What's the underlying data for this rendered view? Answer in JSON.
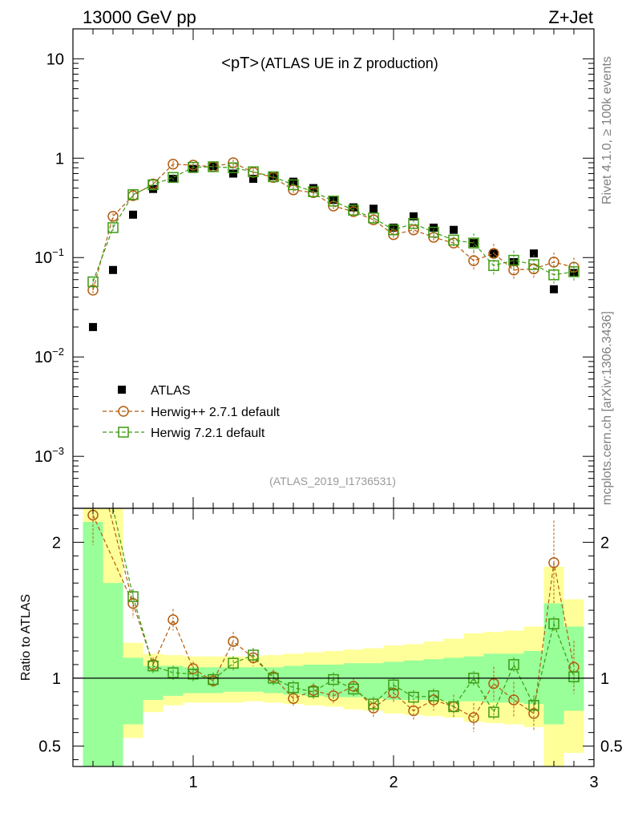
{
  "header": {
    "left": "13000 GeV pp",
    "right": "Z+Jet"
  },
  "side_text": {
    "top": "Rivet 4.1.0, ≥ 100k events",
    "bottom": "mcplots.cern.ch [arXiv:1306.3436]"
  },
  "chart_data": [
    {
      "type": "scatter",
      "yscale": "log",
      "title_main": "<pT>",
      "title_sub": " (ATLAS UE in Z production)",
      "watermark": "(ATLAS_2019_I1736531)",
      "xlim": [
        0.4,
        3.0
      ],
      "ylim": [
        0.0003,
        20
      ],
      "y_ticks": [
        {
          "v": 10,
          "base": "10",
          "exp": ""
        },
        {
          "v": 1,
          "base": "1",
          "exp": ""
        },
        {
          "v": 0.1,
          "base": "10",
          "exp": "−1"
        },
        {
          "v": 0.01,
          "base": "10",
          "exp": "−2"
        },
        {
          "v": 0.001,
          "base": "10",
          "exp": "−3"
        }
      ],
      "legend": {
        "atlas": "ATLAS",
        "herwigpp": "Herwig++ 2.7.1 default",
        "herwig7": "Herwig 7.2.1 default"
      },
      "series": [
        {
          "name": "ATLAS",
          "color": "#000000",
          "x": [
            0.5,
            0.6,
            0.7,
            0.8,
            0.9,
            1.0,
            1.1,
            1.2,
            1.3,
            1.4,
            1.5,
            1.6,
            1.7,
            1.8,
            1.9,
            2.0,
            2.1,
            2.2,
            2.3,
            2.4,
            2.5,
            2.6,
            2.7,
            2.8,
            2.9
          ],
          "y": [
            0.02,
            0.075,
            0.27,
            0.49,
            0.62,
            0.78,
            0.83,
            0.7,
            0.62,
            0.66,
            0.58,
            0.5,
            0.38,
            0.32,
            0.31,
            0.2,
            0.26,
            0.2,
            0.19,
            0.14,
            0.11,
            0.09,
            0.11,
            0.048,
            0.07
          ]
        },
        {
          "name": "Herwig++ 2.7.1 default",
          "color": "#b35c0f",
          "x": [
            0.5,
            0.6,
            0.7,
            0.8,
            0.9,
            1.0,
            1.1,
            1.2,
            1.3,
            1.4,
            1.5,
            1.6,
            1.7,
            1.8,
            1.9,
            2.0,
            2.1,
            2.2,
            2.3,
            2.4,
            2.5,
            2.6,
            2.7,
            2.8,
            2.9
          ],
          "y": [
            0.047,
            0.26,
            0.42,
            0.55,
            0.87,
            0.85,
            0.82,
            0.9,
            0.72,
            0.64,
            0.48,
            0.45,
            0.33,
            0.29,
            0.24,
            0.17,
            0.19,
            0.16,
            0.14,
            0.093,
            0.11,
            0.075,
            0.077,
            0.09,
            0.08
          ]
        },
        {
          "name": "Herwig 7.2.1 default",
          "color": "#3c9a12",
          "x": [
            0.5,
            0.6,
            0.7,
            0.8,
            0.9,
            1.0,
            1.1,
            1.2,
            1.3,
            1.4,
            1.5,
            1.6,
            1.7,
            1.8,
            1.9,
            2.0,
            2.1,
            2.2,
            2.3,
            2.4,
            2.5,
            2.6,
            2.7,
            2.8,
            2.9
          ],
          "y": [
            0.057,
            0.2,
            0.43,
            0.54,
            0.64,
            0.81,
            0.82,
            0.8,
            0.73,
            0.65,
            0.54,
            0.46,
            0.37,
            0.3,
            0.25,
            0.19,
            0.22,
            0.18,
            0.15,
            0.14,
            0.083,
            0.094,
            0.085,
            0.067,
            0.072
          ]
        }
      ]
    },
    {
      "type": "scatter",
      "ylabel": "Ratio to ATLAS",
      "xlim": [
        0.4,
        3.0
      ],
      "ylim": [
        0.35,
        2.25
      ],
      "x_ticks": [
        1,
        2,
        3
      ],
      "y_ticks": [
        0.5,
        1,
        2
      ],
      "reference_line": 1,
      "bands": {
        "x_edges": [
          0.45,
          0.55,
          0.65,
          0.75,
          0.85,
          0.95,
          1.05,
          1.15,
          1.25,
          1.35,
          1.45,
          1.55,
          1.65,
          1.75,
          1.85,
          1.95,
          2.05,
          2.15,
          2.25,
          2.35,
          2.45,
          2.55,
          2.65,
          2.75,
          2.85,
          2.95
        ],
        "stat_lo": [
          0.35,
          0.35,
          0.66,
          0.84,
          0.87,
          0.89,
          0.89,
          0.9,
          0.9,
          0.89,
          0.88,
          0.87,
          0.86,
          0.86,
          0.85,
          0.84,
          0.84,
          0.84,
          0.83,
          0.83,
          0.82,
          0.82,
          0.81,
          0.66,
          0.76
        ],
        "stat_hi": [
          2.15,
          1.7,
          1.15,
          1.09,
          1.09,
          1.08,
          1.08,
          1.08,
          1.08,
          1.08,
          1.09,
          1.1,
          1.1,
          1.11,
          1.11,
          1.12,
          1.13,
          1.14,
          1.15,
          1.16,
          1.18,
          1.18,
          1.2,
          1.55,
          1.38
        ],
        "syst_lo": [
          0.35,
          0.35,
          0.56,
          0.75,
          0.8,
          0.82,
          0.82,
          0.82,
          0.83,
          0.82,
          0.81,
          0.8,
          0.79,
          0.77,
          0.76,
          0.74,
          0.73,
          0.72,
          0.71,
          0.68,
          0.67,
          0.66,
          0.64,
          0.35,
          0.45
        ],
        "syst_hi": [
          2.25,
          2.25,
          1.26,
          1.18,
          1.17,
          1.16,
          1.16,
          1.16,
          1.16,
          1.17,
          1.18,
          1.19,
          1.2,
          1.21,
          1.22,
          1.24,
          1.25,
          1.27,
          1.29,
          1.33,
          1.34,
          1.35,
          1.38,
          1.82,
          1.58
        ],
        "stat_color": "#99ff99",
        "syst_color": "#ffff99"
      },
      "series": [
        {
          "name": "Herwig++ 2.7.1 default",
          "color": "#b35c0f",
          "x": [
            0.5,
            0.7,
            0.8,
            0.9,
            1.0,
            1.1,
            1.2,
            1.3,
            1.4,
            1.5,
            1.6,
            1.7,
            1.8,
            1.9,
            2.0,
            2.1,
            2.2,
            2.3,
            2.4,
            2.5,
            2.6,
            2.7,
            2.8,
            2.9
          ],
          "y": [
            2.2,
            1.55,
            1.1,
            1.43,
            1.07,
            0.98,
            1.27,
            1.15,
            1.01,
            0.85,
            0.91,
            0.87,
            0.94,
            0.78,
            0.89,
            0.76,
            0.84,
            0.79,
            0.71,
            0.96,
            0.84,
            0.74,
            1.85,
            1.08
          ],
          "err": [
            0.25,
            0.12,
            0.06,
            0.09,
            0.06,
            0.05,
            0.08,
            0.07,
            0.06,
            0.06,
            0.06,
            0.06,
            0.07,
            0.08,
            0.08,
            0.08,
            0.09,
            0.1,
            0.12,
            0.14,
            0.15,
            0.15,
            0.35,
            0.22
          ]
        },
        {
          "name": "Herwig 7.2.1 default",
          "color": "#3c9a12",
          "x": [
            0.7,
            0.8,
            0.9,
            1.0,
            1.1,
            1.2,
            1.3,
            1.4,
            1.5,
            1.6,
            1.7,
            1.8,
            1.9,
            2.0,
            2.1,
            2.2,
            2.3,
            2.4,
            2.5,
            2.6,
            2.7,
            2.8,
            2.9
          ],
          "y": [
            1.6,
            1.09,
            1.04,
            1.03,
            0.99,
            1.11,
            1.17,
            1.0,
            0.93,
            0.9,
            0.99,
            0.92,
            0.81,
            0.95,
            0.86,
            0.87,
            0.79,
            1.0,
            0.75,
            1.1,
            0.8,
            1.4,
            1.01
          ]
        }
      ]
    }
  ]
}
